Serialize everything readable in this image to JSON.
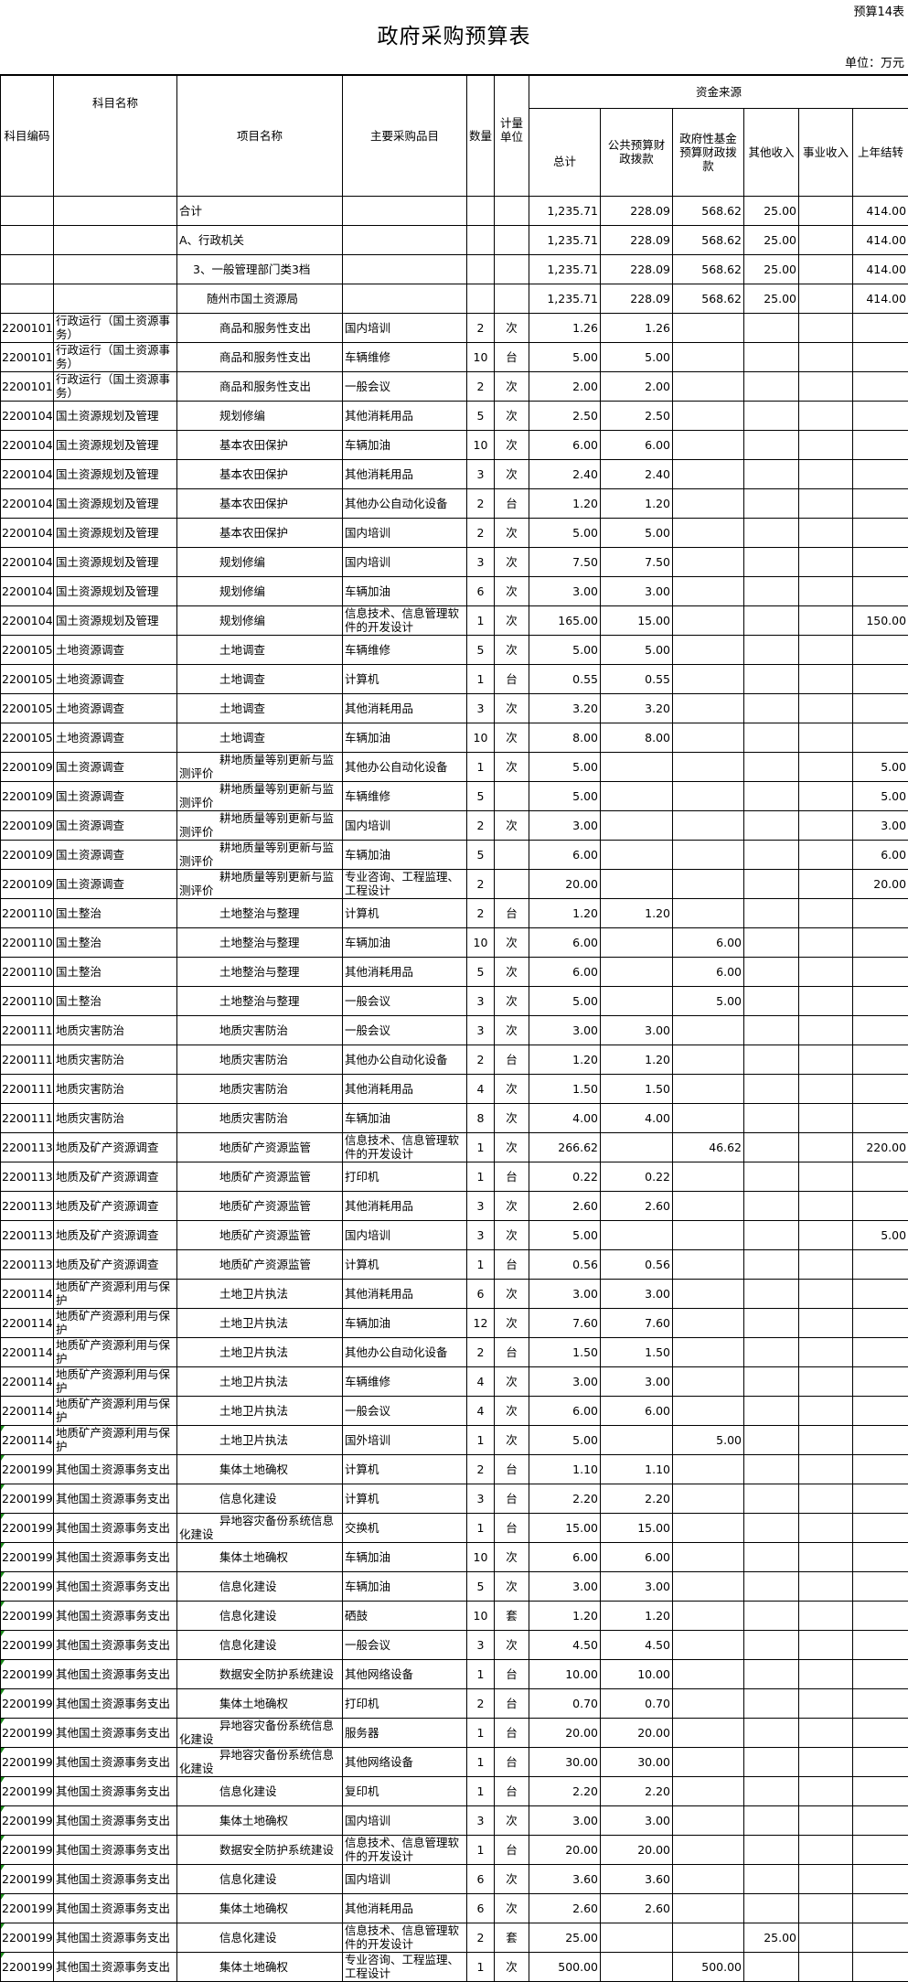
{
  "header": {
    "form_tag": "预算14表",
    "title": "政府采购预算表",
    "unit": "单位：万元"
  },
  "columns": {
    "code": "科目编码",
    "subject": "科目名称",
    "project": "项目名称",
    "item": "主要采购品目",
    "qty": "数量",
    "unit": "计量单位",
    "funding_group": "资金来源",
    "total": "总计",
    "public_budget": "公共预算财政拨款",
    "gov_fund": "政府性基金预算财政拨款",
    "other_income": "其他收入",
    "business_income": "事业收入",
    "carryover": "上年结转"
  },
  "summary_rows": [
    {
      "label": "合计",
      "level": 0,
      "values": [
        "1,235.71",
        "228.09",
        "568.62",
        "25.00",
        "",
        "414.00"
      ]
    },
    {
      "label": "A、行政机关",
      "level": 0,
      "values": [
        "1,235.71",
        "228.09",
        "568.62",
        "25.00",
        "",
        "414.00"
      ]
    },
    {
      "label": "3、一般管理部门类3档",
      "level": 1,
      "values": [
        "1,235.71",
        "228.09",
        "568.62",
        "25.00",
        "",
        "414.00"
      ]
    },
    {
      "label": "随州市国土资源局",
      "level": 2,
      "values": [
        "1,235.71",
        "228.09",
        "568.62",
        "25.00",
        "",
        "414.00"
      ]
    }
  ],
  "rows": [
    [
      "2200101",
      "行政运行（国土资源事务）",
      "商品和服务性支出",
      "国内培训",
      "2",
      "次",
      "1.26",
      "1.26",
      "",
      "",
      "",
      ""
    ],
    [
      "2200101",
      "行政运行（国土资源事务）",
      "商品和服务性支出",
      "车辆维修",
      "10",
      "台",
      "5.00",
      "5.00",
      "",
      "",
      "",
      ""
    ],
    [
      "2200101",
      "行政运行（国土资源事务）",
      "商品和服务性支出",
      "一般会议",
      "2",
      "次",
      "2.00",
      "2.00",
      "",
      "",
      "",
      ""
    ],
    [
      "2200104",
      "国土资源规划及管理",
      "规划修编",
      "其他消耗用品",
      "5",
      "次",
      "2.50",
      "2.50",
      "",
      "",
      "",
      ""
    ],
    [
      "2200104",
      "国土资源规划及管理",
      "基本农田保护",
      "车辆加油",
      "10",
      "次",
      "6.00",
      "6.00",
      "",
      "",
      "",
      ""
    ],
    [
      "2200104",
      "国土资源规划及管理",
      "基本农田保护",
      "其他消耗用品",
      "3",
      "次",
      "2.40",
      "2.40",
      "",
      "",
      "",
      ""
    ],
    [
      "2200104",
      "国土资源规划及管理",
      "基本农田保护",
      "其他办公自动化设备",
      "2",
      "台",
      "1.20",
      "1.20",
      "",
      "",
      "",
      ""
    ],
    [
      "2200104",
      "国土资源规划及管理",
      "基本农田保护",
      "国内培训",
      "2",
      "次",
      "5.00",
      "5.00",
      "",
      "",
      "",
      ""
    ],
    [
      "2200104",
      "国土资源规划及管理",
      "规划修编",
      "国内培训",
      "3",
      "次",
      "7.50",
      "7.50",
      "",
      "",
      "",
      ""
    ],
    [
      "2200104",
      "国土资源规划及管理",
      "规划修编",
      "车辆加油",
      "6",
      "次",
      "3.00",
      "3.00",
      "",
      "",
      "",
      ""
    ],
    [
      "2200104",
      "国土资源规划及管理",
      "规划修编",
      "信息技术、信息管理软件的开发设计",
      "1",
      "次",
      "165.00",
      "15.00",
      "",
      "",
      "",
      "150.00"
    ],
    [
      "2200105",
      "土地资源调查",
      "土地调查",
      "车辆维修",
      "5",
      "次",
      "5.00",
      "5.00",
      "",
      "",
      "",
      ""
    ],
    [
      "2200105",
      "土地资源调查",
      "土地调查",
      "计算机",
      "1",
      "台",
      "0.55",
      "0.55",
      "",
      "",
      "",
      ""
    ],
    [
      "2200105",
      "土地资源调查",
      "土地调查",
      "其他消耗用品",
      "3",
      "次",
      "3.20",
      "3.20",
      "",
      "",
      "",
      ""
    ],
    [
      "2200105",
      "土地资源调查",
      "土地调查",
      "车辆加油",
      "10",
      "次",
      "8.00",
      "8.00",
      "",
      "",
      "",
      ""
    ],
    [
      "2200109",
      "国土资源调查",
      "耕地质量等别更新与监测评价",
      "其他办公自动化设备",
      "1",
      "次",
      "5.00",
      "",
      "",
      "",
      "",
      "5.00"
    ],
    [
      "2200109",
      "国土资源调查",
      "耕地质量等别更新与监测评价",
      "车辆维修",
      "5",
      "",
      "5.00",
      "",
      "",
      "",
      "",
      "5.00"
    ],
    [
      "2200109",
      "国土资源调查",
      "耕地质量等别更新与监测评价",
      "国内培训",
      "2",
      "次",
      "3.00",
      "",
      "",
      "",
      "",
      "3.00"
    ],
    [
      "2200109",
      "国土资源调查",
      "耕地质量等别更新与监测评价",
      "车辆加油",
      "5",
      "",
      "6.00",
      "",
      "",
      "",
      "",
      "6.00"
    ],
    [
      "2200109",
      "国土资源调查",
      "耕地质量等别更新与监测评价",
      "专业咨询、工程监理、工程设计",
      "2",
      "",
      "20.00",
      "",
      "",
      "",
      "",
      "20.00"
    ],
    [
      "2200110",
      "国土整治",
      "土地整治与整理",
      "计算机",
      "2",
      "台",
      "1.20",
      "1.20",
      "",
      "",
      "",
      ""
    ],
    [
      "2200110",
      "国土整治",
      "土地整治与整理",
      "车辆加油",
      "10",
      "次",
      "6.00",
      "",
      "6.00",
      "",
      "",
      ""
    ],
    [
      "2200110",
      "国土整治",
      "土地整治与整理",
      "其他消耗用品",
      "5",
      "次",
      "6.00",
      "",
      "6.00",
      "",
      "",
      ""
    ],
    [
      "2200110",
      "国土整治",
      "土地整治与整理",
      "一般会议",
      "3",
      "次",
      "5.00",
      "",
      "5.00",
      "",
      "",
      ""
    ],
    [
      "2200111",
      "地质灾害防治",
      "地质灾害防治",
      "一般会议",
      "3",
      "次",
      "3.00",
      "3.00",
      "",
      "",
      "",
      ""
    ],
    [
      "2200111",
      "地质灾害防治",
      "地质灾害防治",
      "其他办公自动化设备",
      "2",
      "台",
      "1.20",
      "1.20",
      "",
      "",
      "",
      ""
    ],
    [
      "2200111",
      "地质灾害防治",
      "地质灾害防治",
      "其他消耗用品",
      "4",
      "次",
      "1.50",
      "1.50",
      "",
      "",
      "",
      ""
    ],
    [
      "2200111",
      "地质灾害防治",
      "地质灾害防治",
      "车辆加油",
      "8",
      "次",
      "4.00",
      "4.00",
      "",
      "",
      "",
      ""
    ],
    [
      "2200113",
      "地质及矿产资源调查",
      "地质矿产资源监管",
      "信息技术、信息管理软件的开发设计",
      "1",
      "次",
      "266.62",
      "",
      "46.62",
      "",
      "",
      "220.00"
    ],
    [
      "2200113",
      "地质及矿产资源调查",
      "地质矿产资源监管",
      "打印机",
      "1",
      "台",
      "0.22",
      "0.22",
      "",
      "",
      "",
      ""
    ],
    [
      "2200113",
      "地质及矿产资源调查",
      "地质矿产资源监管",
      "其他消耗用品",
      "3",
      "次",
      "2.60",
      "2.60",
      "",
      "",
      "",
      ""
    ],
    [
      "2200113",
      "地质及矿产资源调查",
      "地质矿产资源监管",
      "国内培训",
      "3",
      "次",
      "5.00",
      "",
      "",
      "",
      "",
      "5.00"
    ],
    [
      "2200113",
      "地质及矿产资源调查",
      "地质矿产资源监管",
      "计算机",
      "1",
      "台",
      "0.56",
      "0.56",
      "",
      "",
      "",
      ""
    ],
    [
      "2200114",
      "地质矿产资源利用与保护",
      "土地卫片执法",
      "其他消耗用品",
      "6",
      "次",
      "3.00",
      "3.00",
      "",
      "",
      "",
      ""
    ],
    [
      "2200114",
      "地质矿产资源利用与保护",
      "土地卫片执法",
      "车辆加油",
      "12",
      "次",
      "7.60",
      "7.60",
      "",
      "",
      "",
      ""
    ],
    [
      "2200114",
      "地质矿产资源利用与保护",
      "土地卫片执法",
      "其他办公自动化设备",
      "2",
      "台",
      "1.50",
      "1.50",
      "",
      "",
      "",
      ""
    ],
    [
      "2200114",
      "地质矿产资源利用与保护",
      "土地卫片执法",
      "车辆维修",
      "4",
      "次",
      "3.00",
      "3.00",
      "",
      "",
      "",
      ""
    ],
    [
      "2200114",
      "地质矿产资源利用与保护",
      "土地卫片执法",
      "一般会议",
      "4",
      "次",
      "6.00",
      "6.00",
      "",
      "",
      "",
      ""
    ],
    [
      "2200114",
      "地质矿产资源利用与保护",
      "土地卫片执法",
      "国外培训",
      "1",
      "次",
      "5.00",
      "",
      "5.00",
      "",
      "",
      ""
    ],
    [
      "2200199",
      "其他国土资源事务支出",
      "集体土地确权",
      "计算机",
      "2",
      "台",
      "1.10",
      "1.10",
      "",
      "",
      "",
      ""
    ],
    [
      "2200199",
      "其他国土资源事务支出",
      "信息化建设",
      "计算机",
      "3",
      "台",
      "2.20",
      "2.20",
      "",
      "",
      "",
      ""
    ],
    [
      "2200199",
      "其他国土资源事务支出",
      "异地容灾备份系统信息化建设",
      "交换机",
      "1",
      "台",
      "15.00",
      "15.00",
      "",
      "",
      "",
      ""
    ],
    [
      "2200199",
      "其他国土资源事务支出",
      "集体土地确权",
      "车辆加油",
      "10",
      "次",
      "6.00",
      "6.00",
      "",
      "",
      "",
      ""
    ],
    [
      "2200199",
      "其他国土资源事务支出",
      "信息化建设",
      "车辆加油",
      "5",
      "次",
      "3.00",
      "3.00",
      "",
      "",
      "",
      ""
    ],
    [
      "2200199",
      "其他国土资源事务支出",
      "信息化建设",
      "硒鼓",
      "10",
      "套",
      "1.20",
      "1.20",
      "",
      "",
      "",
      ""
    ],
    [
      "2200199",
      "其他国土资源事务支出",
      "信息化建设",
      "一般会议",
      "3",
      "次",
      "4.50",
      "4.50",
      "",
      "",
      "",
      ""
    ],
    [
      "2200199",
      "其他国土资源事务支出",
      "数据安全防护系统建设",
      "其他网络设备",
      "1",
      "台",
      "10.00",
      "10.00",
      "",
      "",
      "",
      ""
    ],
    [
      "2200199",
      "其他国土资源事务支出",
      "集体土地确权",
      "打印机",
      "2",
      "台",
      "0.70",
      "0.70",
      "",
      "",
      "",
      ""
    ],
    [
      "2200199",
      "其他国土资源事务支出",
      "异地容灾备份系统信息化建设",
      "服务器",
      "1",
      "台",
      "20.00",
      "20.00",
      "",
      "",
      "",
      ""
    ],
    [
      "2200199",
      "其他国土资源事务支出",
      "异地容灾备份系统信息化建设",
      "其他网络设备",
      "1",
      "台",
      "30.00",
      "30.00",
      "",
      "",
      "",
      ""
    ],
    [
      "2200199",
      "其他国土资源事务支出",
      "信息化建设",
      "复印机",
      "1",
      "台",
      "2.20",
      "2.20",
      "",
      "",
      "",
      ""
    ],
    [
      "2200199",
      "其他国土资源事务支出",
      "集体土地确权",
      "国内培训",
      "3",
      "次",
      "3.00",
      "3.00",
      "",
      "",
      "",
      ""
    ],
    [
      "2200199",
      "其他国土资源事务支出",
      "数据安全防护系统建设",
      "信息技术、信息管理软件的开发设计",
      "1",
      "台",
      "20.00",
      "20.00",
      "",
      "",
      "",
      ""
    ],
    [
      "2200199",
      "其他国土资源事务支出",
      "信息化建设",
      "国内培训",
      "6",
      "次",
      "3.60",
      "3.60",
      "",
      "",
      "",
      ""
    ],
    [
      "2200199",
      "其他国土资源事务支出",
      "集体土地确权",
      "其他消耗用品",
      "6",
      "次",
      "2.60",
      "2.60",
      "",
      "",
      "",
      ""
    ],
    [
      "2200199",
      "其他国土资源事务支出",
      "信息化建设",
      "信息技术、信息管理软件的开发设计",
      "2",
      "套",
      "25.00",
      "",
      "",
      "25.00",
      "",
      ""
    ],
    [
      "2200199",
      "其他国土资源事务支出",
      "集体土地确权",
      "专业咨询、工程监理、工程设计",
      "1",
      "次",
      "500.00",
      "",
      "500.00",
      "",
      "",
      ""
    ]
  ],
  "colors": {
    "border": "#000000",
    "cell_marker": "#1a8a1a"
  }
}
